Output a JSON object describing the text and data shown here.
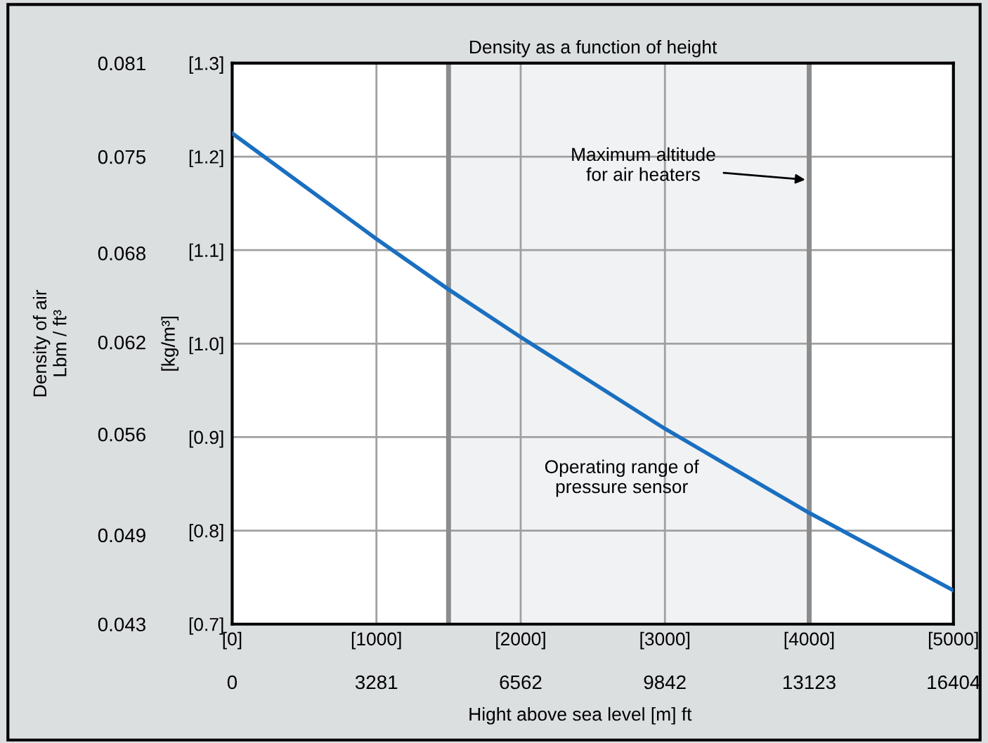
{
  "chart_data": {
    "type": "line",
    "title": "Density as a function of height",
    "xlabel": "Hight above sea level [m] ft",
    "ylabel": "[kg/m³]",
    "y2label": "Density of air\nLbm / ft³",
    "x": [
      0,
      1000,
      1500,
      2000,
      3000,
      4000,
      5000
    ],
    "series": [
      {
        "color": "#1a6fc0",
        "values": [
          1.225,
          1.112,
          1.058,
          1.007,
          0.909,
          0.819,
          0.736
        ]
      }
    ],
    "xlim": [
      0,
      5000
    ],
    "xticks": [
      {
        "value": 0,
        "label": "[0]"
      },
      {
        "value": 1000,
        "label": "[1000]"
      },
      {
        "value": 2000,
        "label": "[2000]"
      },
      {
        "value": 3000,
        "label": "[3000]"
      },
      {
        "value": 4000,
        "label": "[4000]"
      },
      {
        "value": 5000,
        "label": "[5000]"
      }
    ],
    "x2lim": [
      0,
      16404
    ],
    "x2ticks": [
      0,
      3281,
      6562,
      9842,
      13123,
      16404
    ],
    "ylim": [
      0.7,
      1.3
    ],
    "yticks": [
      {
        "value": 0.7,
        "label": "[0.7]"
      },
      {
        "value": 0.8,
        "label": "[0.8]"
      },
      {
        "value": 0.9,
        "label": "[0.9]"
      },
      {
        "value": 1.0,
        "label": "[1.0]"
      },
      {
        "value": 1.1,
        "label": "[1.1]"
      },
      {
        "value": 1.2,
        "label": "[1.2]"
      },
      {
        "value": 1.3,
        "label": "[1.3]"
      }
    ],
    "y2lim": [
      0.0434,
      0.0812
    ],
    "y2ticks": [
      {
        "value": 0.0434,
        "label": "0.043"
      },
      {
        "value": 0.0494,
        "label": "0.049"
      },
      {
        "value": 0.0562,
        "label": "0.056"
      },
      {
        "value": 0.0624,
        "label": "0.062"
      },
      {
        "value": 0.0684,
        "label": "0.068"
      },
      {
        "value": 0.0749,
        "label": "0.075"
      },
      {
        "value": 0.0812,
        "label": "0.081"
      }
    ],
    "bands": [
      {
        "axis": "x",
        "from": 1500,
        "to": 4000,
        "color": "#f1f2f4"
      }
    ],
    "ref_lines": [
      {
        "axis": "x",
        "value": 1500,
        "color": "#8c8c8c"
      },
      {
        "axis": "x",
        "value": 4000,
        "color": "#8c8c8c"
      }
    ],
    "annotations": [
      {
        "text": "Maximum altitude\nfor air heaters",
        "x": 4000,
        "y": 1.175
      },
      "Operating range of\npressure sensor"
    ],
    "grid": true,
    "line_style": "solid",
    "marker": "none"
  }
}
